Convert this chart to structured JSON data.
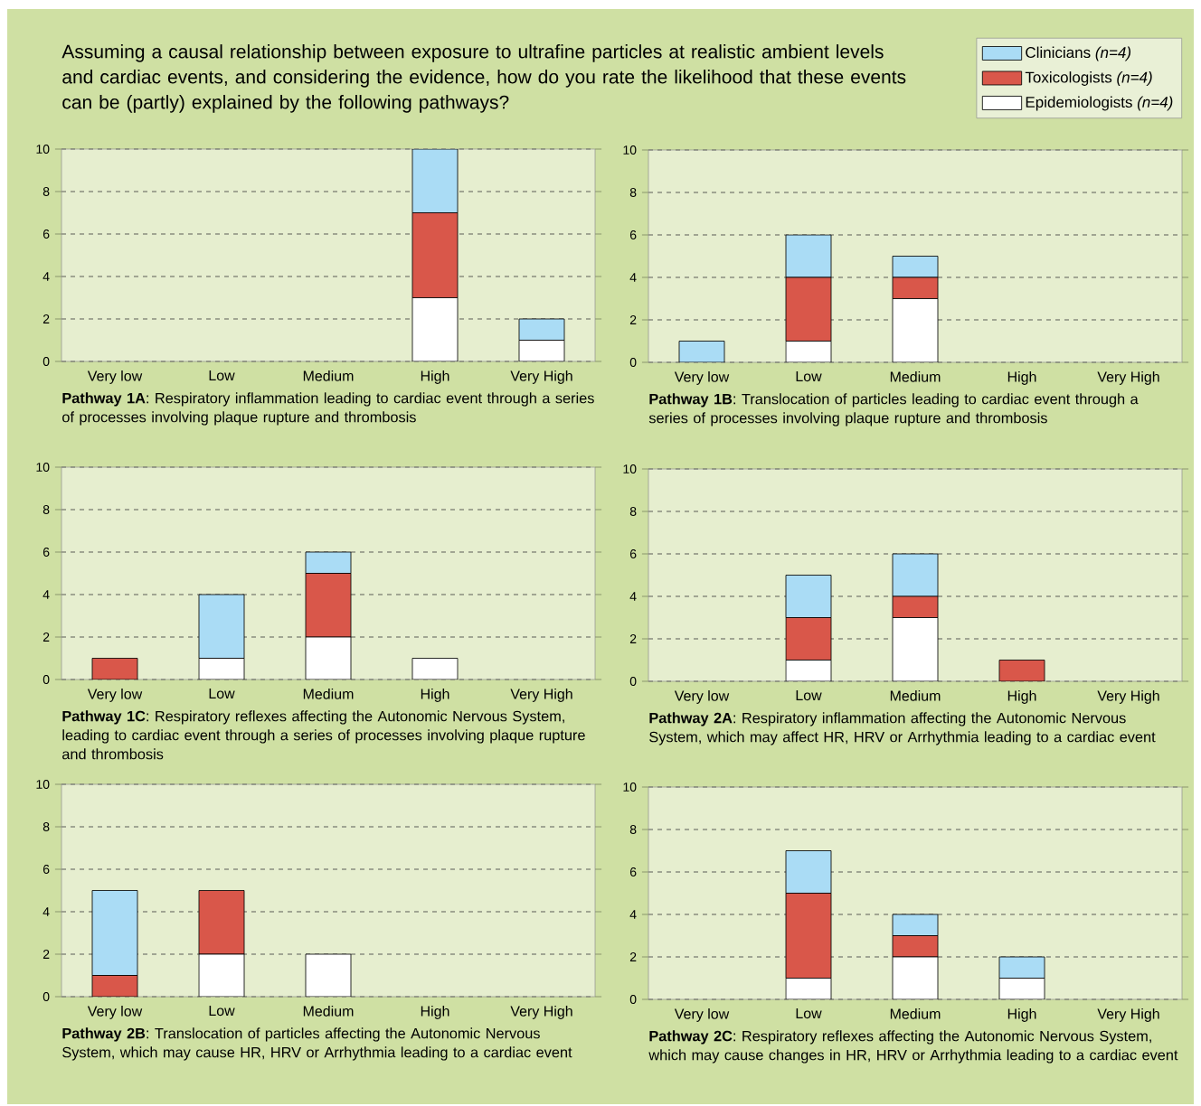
{
  "chart_data": [
    {
      "type": "bar",
      "stacked": true,
      "title": "Assuming a causal relationship between exposure to ultrafine particles at realistic ambient levels and cardiac events, and considering the evidence, how do you rate the likelihood that these events can be (partly) explained by the following pathways?",
      "xlabel": "**Pathway 1A**: Respiratory inflammation leading to cardiac event through a series of processes involving plaque rupture and thrombosis",
      "categories": [
        "Very low",
        "Low",
        "Medium",
        "High",
        "Very High"
      ],
      "ylim": [
        0,
        10
      ],
      "yticks": [
        0,
        2,
        4,
        6,
        8,
        10
      ],
      "grid": "y",
      "series": [
        {
          "color": "#ffffff",
          "values": [
            0,
            0,
            0,
            3,
            1
          ]
        },
        {
          "color": "#d9574a",
          "values": [
            0,
            0,
            0,
            4,
            0
          ]
        },
        {
          "color": "#aadcf5",
          "values": [
            0,
            0,
            0,
            3,
            1
          ]
        }
      ]
    },
    {
      "type": "bar",
      "stacked": true,
      "xlabel": "**Pathway 1B**: Translocation of particles leading to cardiac event through a series of processes involving plaque rupture and thrombosis",
      "categories": [
        "Very low",
        "Low",
        "Medium",
        "High",
        "Very High"
      ],
      "ylim": [
        0,
        10
      ],
      "yticks": [
        0,
        2,
        4,
        6,
        8,
        10
      ],
      "grid": "y",
      "legend": "top",
      "series": [
        {
          "name": "Epidemiologists *(n=4)*",
          "color": "#ffffff",
          "values": [
            0,
            1,
            3,
            0,
            0
          ]
        },
        {
          "name": "Toxicologists *(n=4)*",
          "color": "#d9574a",
          "values": [
            0,
            3,
            1,
            0,
            0
          ]
        },
        {
          "name": "Clinicians *(n=4)*",
          "color": "#aadcf5",
          "values": [
            1,
            2,
            1,
            0,
            0
          ]
        }
      ]
    },
    {
      "type": "bar",
      "stacked": true,
      "xlabel": "**Pathway 1C**: Respiratory reflexes affecting the Autonomic Nervous System, leading to cardiac event through a series of processes involving plaque rupture and thrombosis",
      "categories": [
        "Very low",
        "Low",
        "Medium",
        "High",
        "Very High"
      ],
      "ylim": [
        0,
        10
      ],
      "yticks": [
        0,
        2,
        4,
        6,
        8,
        10
      ],
      "grid": "y",
      "series": [
        {
          "color": "#ffffff",
          "values": [
            0,
            1,
            2,
            1,
            0
          ]
        },
        {
          "color": "#d9574a",
          "values": [
            1,
            0,
            3,
            0,
            0
          ]
        },
        {
          "color": "#aadcf5",
          "values": [
            0,
            3,
            1,
            0,
            0
          ]
        }
      ]
    },
    {
      "type": "bar",
      "stacked": true,
      "xlabel": "**Pathway 2A**: Respiratory inflammation affecting the Autonomic Nervous System, which may affect HR, HRV or Arrhythmia leading to a cardiac event",
      "categories": [
        "Very low",
        "Low",
        "Medium",
        "High",
        "Very High"
      ],
      "ylim": [
        0,
        10
      ],
      "yticks": [
        0,
        2,
        4,
        6,
        8,
        10
      ],
      "grid": "y",
      "series": [
        {
          "color": "#ffffff",
          "values": [
            0,
            1,
            3,
            0,
            0
          ]
        },
        {
          "color": "#d9574a",
          "values": [
            0,
            2,
            1,
            1,
            0
          ]
        },
        {
          "color": "#aadcf5",
          "values": [
            0,
            2,
            2,
            0,
            0
          ]
        }
      ]
    },
    {
      "type": "bar",
      "stacked": true,
      "xlabel": "**Pathway 2B**: Translocation of particles affecting the Autonomic Nervous System, which may cause HR, HRV or Arrhythmia leading to a cardiac event",
      "categories": [
        "Very low",
        "Low",
        "Medium",
        "High",
        "Very High"
      ],
      "ylim": [
        0,
        10
      ],
      "yticks": [
        0,
        2,
        4,
        6,
        8,
        10
      ],
      "grid": "y",
      "series": [
        {
          "color": "#ffffff",
          "values": [
            0,
            2,
            2,
            0,
            0
          ]
        },
        {
          "color": "#d9574a",
          "values": [
            1,
            3,
            0,
            0,
            0
          ]
        },
        {
          "color": "#aadcf5",
          "values": [
            4,
            0,
            0,
            0,
            0
          ]
        }
      ]
    },
    {
      "type": "bar",
      "stacked": true,
      "xlabel": "**Pathway 2C**: Respiratory reflexes affecting the Autonomic Nervous System, which may cause changes in HR, HRV or Arrhythmia leading to a cardiac event",
      "categories": [
        "Very low",
        "Low",
        "Medium",
        "High",
        "Very High"
      ],
      "ylim": [
        0,
        10
      ],
      "yticks": [
        0,
        2,
        4,
        6,
        8,
        10
      ],
      "grid": "y",
      "series": [
        {
          "color": "#ffffff",
          "values": [
            0,
            1,
            2,
            1,
            0
          ]
        },
        {
          "color": "#d9574a",
          "values": [
            0,
            4,
            1,
            0,
            0
          ]
        },
        {
          "color": "#aadcf5",
          "values": [
            0,
            2,
            1,
            1,
            0
          ]
        }
      ]
    }
  ]
}
